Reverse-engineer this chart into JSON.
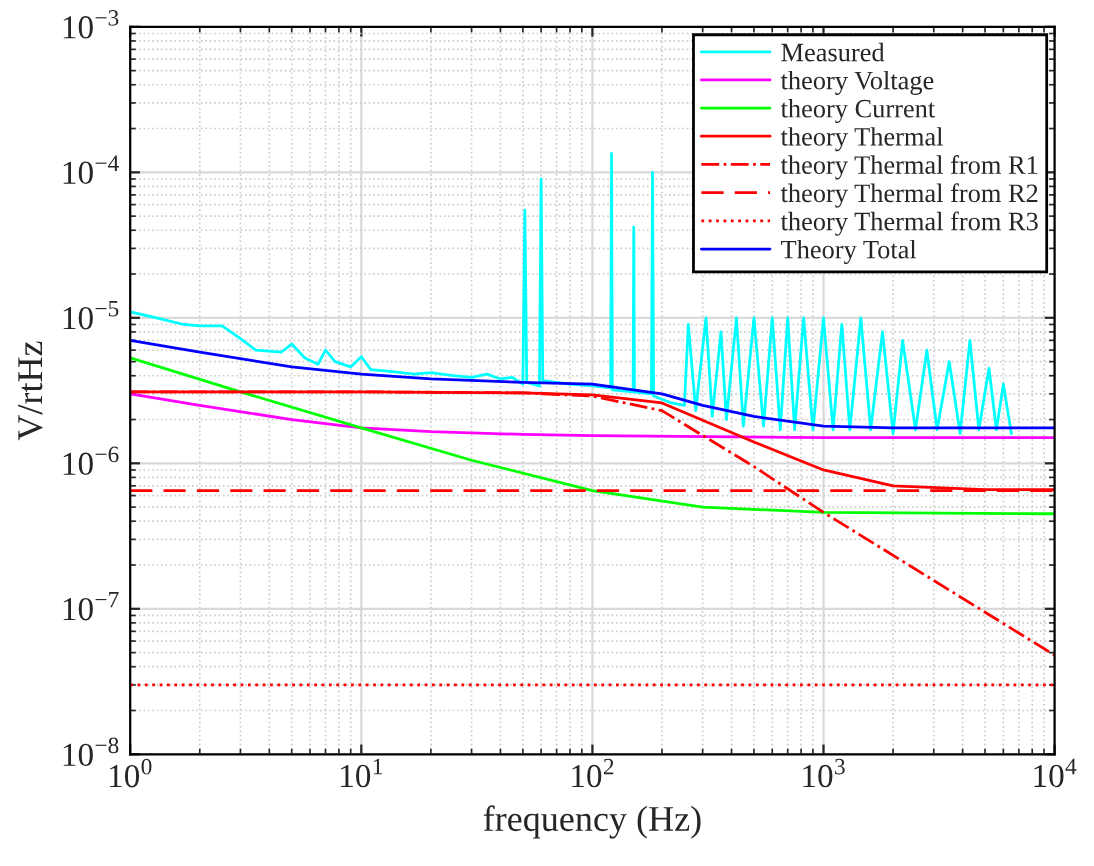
{
  "chart_data": {
    "type": "line",
    "xlabel": "frequency (Hz)",
    "ylabel": "V/rtHz",
    "log": "xy",
    "grid": true,
    "legend": "top right",
    "xlim": [
      1,
      10000
    ],
    "ylim": [
      1e-08,
      0.001
    ],
    "xticks": [
      {
        "value": 1,
        "label": "10$^{0}$"
      },
      {
        "value": 10,
        "label": "10$^{1}$"
      },
      {
        "value": 100,
        "label": "10$^{2}$"
      },
      {
        "value": 1000,
        "label": "10$^{3}$"
      },
      {
        "value": 10000,
        "label": "10$^{4}$"
      }
    ],
    "yticks": [
      {
        "value": 1e-08,
        "label": "10$^{−8}$"
      },
      {
        "value": 1e-07,
        "label": "10$^{−7}$"
      },
      {
        "value": 1e-06,
        "label": "10$^{−6}$"
      },
      {
        "value": 1e-05,
        "label": "10$^{−5}$"
      },
      {
        "value": 0.0001,
        "label": "10$^{−4}$"
      },
      {
        "value": 0.001,
        "label": "10$^{−3}$"
      }
    ],
    "series": [
      {
        "name": "Measured",
        "color": "#00ffff",
        "line_style": "solid",
        "x": [
          1,
          1.3,
          1.7,
          2,
          2.5,
          3,
          3.5,
          4.5,
          5,
          5.7,
          6.5,
          7,
          7.7,
          9,
          10,
          11,
          13,
          17,
          20,
          25,
          30,
          35,
          40,
          45,
          50,
          51,
          52,
          59,
          60,
          61,
          80,
          100,
          120,
          121,
          122,
          150,
          151,
          152,
          180,
          182,
          184,
          220,
          250,
          260,
          280,
          310,
          330,
          360,
          380,
          420,
          450,
          500,
          550,
          600,
          650,
          700,
          750,
          820,
          900,
          1000,
          1100,
          1200,
          1300,
          1450,
          1600,
          1800,
          2000,
          2200,
          2500,
          2800,
          3100,
          3500,
          3900,
          4300,
          4700,
          5200,
          5600,
          6000,
          6500
        ],
        "values": [
          1.1e-05,
          1e-05,
          9e-06,
          8.8e-06,
          8.8e-06,
          7.2e-06,
          6e-06,
          5.8e-06,
          6.6e-06,
          5.3e-06,
          4.8e-06,
          6e-06,
          5e-06,
          4.6e-06,
          5.4e-06,
          4.4e-06,
          4.3e-06,
          4.1e-06,
          4.2e-06,
          4e-06,
          3.9e-06,
          4.1e-06,
          3.8e-06,
          3.9e-06,
          3.5e-06,
          5.5e-05,
          3.6e-06,
          3.4e-06,
          9e-05,
          3.7e-06,
          3.5e-06,
          3.4e-06,
          3.3e-06,
          0.000135,
          3.2e-06,
          3.1e-06,
          4.2e-05,
          3.1e-06,
          3e-06,
          0.0001,
          2.9e-06,
          2.6e-06,
          2.5e-06,
          9e-06,
          2.3e-06,
          1e-05,
          2.1e-06,
          8e-06,
          2e-06,
          1e-05,
          1.8e-06,
          1e-05,
          1.8e-06,
          1e-05,
          1.7e-06,
          1e-05,
          1.7e-06,
          1e-05,
          1.7e-06,
          1e-05,
          1.7e-06,
          9e-06,
          1.7e-06,
          1e-05,
          1.7e-06,
          8e-06,
          1.6e-06,
          7e-06,
          1.7e-06,
          6e-06,
          1.7e-06,
          5e-06,
          1.6e-06,
          7e-06,
          1.7e-06,
          4.5e-06,
          1.7e-06,
          3.5e-06,
          1.6e-06
        ]
      },
      {
        "name": "theory Voltage",
        "color": "#ff00ff",
        "line_style": "solid",
        "x": [
          1,
          2,
          5,
          10,
          20,
          50,
          100,
          1000,
          10000
        ],
        "values": [
          3e-06,
          2.5e-06,
          2e-06,
          1.75e-06,
          1.65e-06,
          1.58e-06,
          1.55e-06,
          1.5e-06,
          1.5e-06
        ]
      },
      {
        "name": "theory Current",
        "color": "#00ff00",
        "line_style": "solid",
        "x": [
          1,
          3,
          10,
          30,
          100,
          300,
          1000,
          10000
        ],
        "values": [
          5.3e-06,
          3.1e-06,
          1.75e-06,
          1.05e-06,
          6.5e-07,
          5e-07,
          4.6e-07,
          4.5e-07
        ]
      },
      {
        "name": "theory Thermal",
        "color": "#ff0000",
        "line_style": "solid",
        "x": [
          1,
          10,
          50,
          100,
          200,
          500,
          1000,
          2000,
          5000,
          10000
        ],
        "values": [
          3.1e-06,
          3.1e-06,
          3.05e-06,
          2.95e-06,
          2.6e-06,
          1.4e-06,
          9e-07,
          7e-07,
          6.6e-07,
          6.6e-07
        ]
      },
      {
        "name": "theory Thermal from R1",
        "color": "#ff0000",
        "line_style": "dashdot",
        "x": [
          1,
          10,
          50,
          100,
          200,
          500,
          1000,
          10000
        ],
        "values": [
          3.1e-06,
          3.1e-06,
          3.05e-06,
          2.9e-06,
          2.3e-06,
          9.5e-07,
          4.6e-07,
          4.8e-08
        ]
      },
      {
        "name": "theory Thermal from R2",
        "color": "#ff0000",
        "line_style": "dashed",
        "x": [
          1,
          10000
        ],
        "values": [
          6.5e-07,
          6.5e-07
        ]
      },
      {
        "name": "theory Thermal from R3",
        "color": "#ff0000",
        "line_style": "dotted",
        "x": [
          1,
          10000
        ],
        "values": [
          3e-08,
          3e-08
        ]
      },
      {
        "name": "Theory Total",
        "color": "#0000ff",
        "line_style": "solid",
        "x": [
          1,
          2,
          5,
          10,
          20,
          50,
          100,
          200,
          300,
          500,
          1000,
          2000,
          10000
        ],
        "values": [
          7e-06,
          5.8e-06,
          4.6e-06,
          4.1e-06,
          3.8e-06,
          3.6e-06,
          3.5e-06,
          3e-06,
          2.5e-06,
          2.1e-06,
          1.8e-06,
          1.75e-06,
          1.75e-06
        ]
      }
    ]
  }
}
